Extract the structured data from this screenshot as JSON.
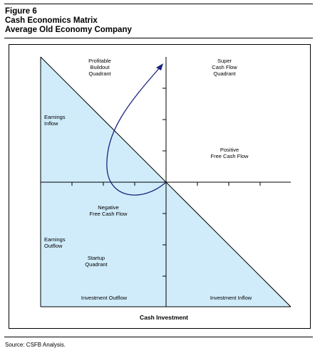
{
  "figure": {
    "number": "Figure 6",
    "title": "Cash Economics Matrix",
    "subtitle": "Average Old Economy Company"
  },
  "diagram": {
    "quadrants": {
      "top_left": [
        "Profitable",
        "Buildout",
        "Quadrant"
      ],
      "top_right": [
        "Super",
        "Cash Flow",
        "Quadrant"
      ],
      "bottom_left": [
        "Startup",
        "Quadrant"
      ]
    },
    "regions": {
      "positive": [
        "Positive",
        "Free Cash Flow"
      ],
      "negative": [
        "Negative",
        "Free Cash Flow"
      ]
    },
    "y_axis": {
      "top": [
        "Earnings",
        "Inflow"
      ],
      "bottom": [
        "Earnings",
        "Outflow"
      ]
    },
    "x_axis": {
      "left": "Investment Outflow",
      "right": "Investment Inflow",
      "title": "Cash Investment"
    },
    "colors": {
      "shade": "#d0ecfa",
      "curve": "#1a237e",
      "axis": "#000000"
    }
  },
  "source": "Source: CSFB Analysis."
}
